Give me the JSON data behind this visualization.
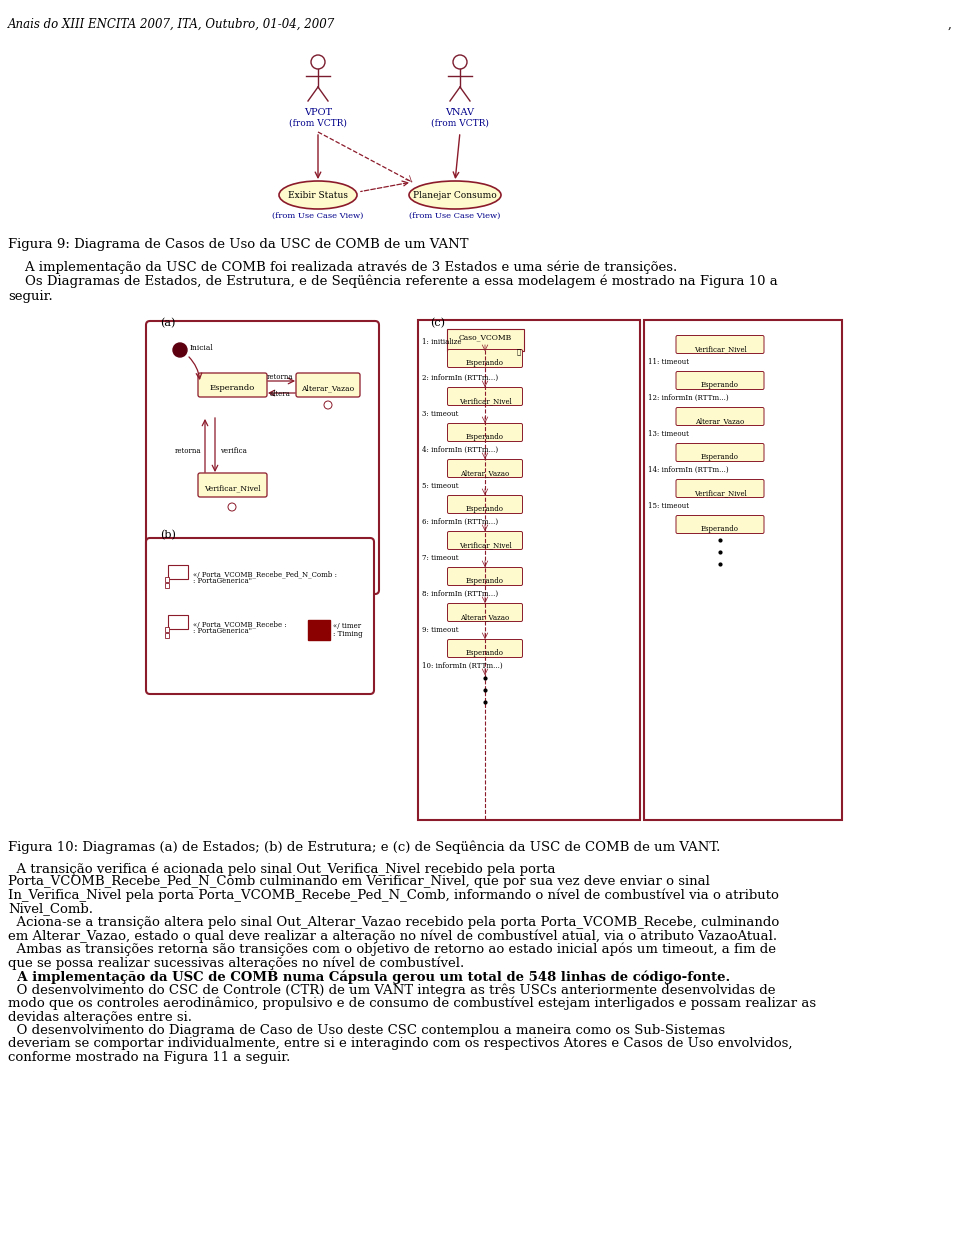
{
  "header": "Anais do XIII ENCITA 2007, ITA, Outubro, 01-04, 2007",
  "comma": ",",
  "fig9_caption": "Figura 9: Diagrama de Casos de Uso da USC de COMB de um VANT",
  "fig10_caption": "Figura 10: Diagramas (a) de Estados; (b) de Estrutura; e (c) de Seqüência da USC de COMB de um VANT.",
  "dark_red": "#7B1C2E",
  "medium_red": "#8B1A2A",
  "yellow_fill": "#FFFACD",
  "blue_text": "#00008B",
  "actor_color": "#7B1C2E"
}
